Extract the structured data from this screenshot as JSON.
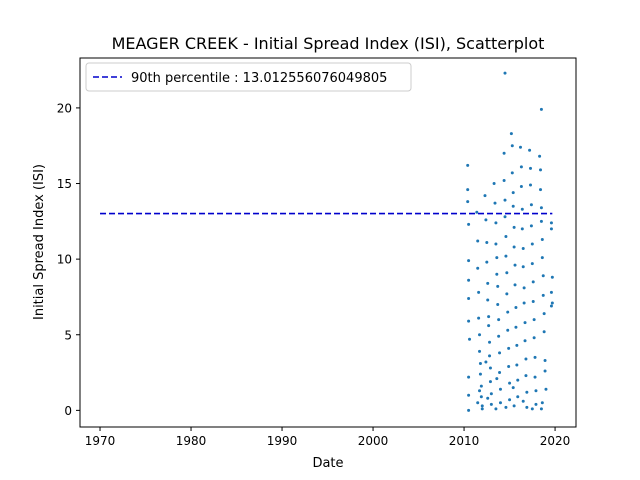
{
  "chart_data": {
    "type": "scatter",
    "title": "MEAGER CREEK - Initial Spread Index (ISI), Scatterplot",
    "xlabel": "Date",
    "ylabel": "Initial Spread Index (ISI)",
    "xlim": [
      1967.8,
      2022.3
    ],
    "ylim": [
      -1.1,
      23.3
    ],
    "x_ticks": [
      1970,
      1980,
      1990,
      2000,
      2010,
      2020
    ],
    "y_ticks": [
      0,
      5,
      10,
      15,
      20
    ],
    "grid": false,
    "legend_position": "top-left",
    "percentile_line": {
      "label": "90th percentile : 13.012556076049805",
      "value": 13.012556076049805,
      "x_range": [
        1970,
        2019.7
      ],
      "color": "#0000cc",
      "style": "dashed"
    },
    "series": [
      {
        "color": "#1f77b4",
        "points": [
          [
            2010.4,
            16.2
          ],
          [
            2010.4,
            14.6
          ],
          [
            2010.4,
            13.8
          ],
          [
            2010.5,
            12.3
          ],
          [
            2010.5,
            9.9
          ],
          [
            2010.5,
            8.6
          ],
          [
            2010.5,
            7.4
          ],
          [
            2010.5,
            5.9
          ],
          [
            2010.6,
            4.7
          ],
          [
            2010.5,
            2.2
          ],
          [
            2010.5,
            1.0
          ],
          [
            2010.5,
            0.0
          ],
          [
            2011.4,
            13.1
          ],
          [
            2011.5,
            11.2
          ],
          [
            2011.5,
            9.4
          ],
          [
            2011.6,
            7.8
          ],
          [
            2011.6,
            6.1
          ],
          [
            2011.7,
            5.0
          ],
          [
            2011.7,
            3.9
          ],
          [
            2011.8,
            3.1
          ],
          [
            2011.8,
            2.4
          ],
          [
            2011.9,
            1.6
          ],
          [
            2011.9,
            0.9
          ],
          [
            2012.0,
            0.3
          ],
          [
            2012.0,
            0.1
          ],
          [
            2011.7,
            1.3
          ],
          [
            2011.5,
            0.5
          ],
          [
            2012.3,
            14.2
          ],
          [
            2012.4,
            12.6
          ],
          [
            2012.5,
            11.1
          ],
          [
            2012.5,
            9.8
          ],
          [
            2012.6,
            8.4
          ],
          [
            2012.6,
            7.3
          ],
          [
            2012.7,
            6.2
          ],
          [
            2012.7,
            5.6
          ],
          [
            2012.8,
            4.5
          ],
          [
            2012.8,
            3.6
          ],
          [
            2012.9,
            2.8
          ],
          [
            2012.9,
            1.9
          ],
          [
            2013.0,
            1.1
          ],
          [
            2013.0,
            0.4
          ],
          [
            2012.4,
            3.2
          ],
          [
            2012.6,
            0.8
          ],
          [
            2013.3,
            15.0
          ],
          [
            2013.4,
            13.7
          ],
          [
            2013.5,
            12.4
          ],
          [
            2013.5,
            11.0
          ],
          [
            2013.6,
            10.1
          ],
          [
            2013.6,
            9.0
          ],
          [
            2013.7,
            8.2
          ],
          [
            2013.7,
            7.0
          ],
          [
            2013.8,
            6.0
          ],
          [
            2013.8,
            4.9
          ],
          [
            2013.9,
            3.8
          ],
          [
            2013.9,
            2.5
          ],
          [
            2014.0,
            1.4
          ],
          [
            2014.0,
            0.5
          ],
          [
            2013.5,
            0.1
          ],
          [
            2013.6,
            2.1
          ],
          [
            2014.5,
            22.3
          ],
          [
            2014.4,
            17.0
          ],
          [
            2014.4,
            15.2
          ],
          [
            2014.5,
            13.9
          ],
          [
            2014.5,
            12.8
          ],
          [
            2014.6,
            11.5
          ],
          [
            2014.6,
            10.2
          ],
          [
            2014.7,
            9.1
          ],
          [
            2014.7,
            7.7
          ],
          [
            2014.8,
            6.5
          ],
          [
            2014.8,
            5.3
          ],
          [
            2014.9,
            4.1
          ],
          [
            2014.9,
            2.9
          ],
          [
            2015.0,
            1.8
          ],
          [
            2015.0,
            0.7
          ],
          [
            2014.6,
            0.2
          ],
          [
            2015.2,
            18.3
          ],
          [
            2015.3,
            17.5
          ],
          [
            2015.3,
            15.7
          ],
          [
            2015.4,
            14.4
          ],
          [
            2015.4,
            13.5
          ],
          [
            2015.5,
            12.1
          ],
          [
            2015.5,
            10.8
          ],
          [
            2015.6,
            9.6
          ],
          [
            2015.6,
            8.3
          ],
          [
            2015.7,
            6.8
          ],
          [
            2015.7,
            5.5
          ],
          [
            2015.8,
            4.3
          ],
          [
            2015.8,
            3.0
          ],
          [
            2015.9,
            2.0
          ],
          [
            2015.9,
            0.9
          ],
          [
            2015.5,
            0.3
          ],
          [
            2015.4,
            1.5
          ],
          [
            2016.2,
            17.4
          ],
          [
            2016.3,
            16.1
          ],
          [
            2016.3,
            14.8
          ],
          [
            2016.4,
            13.3
          ],
          [
            2016.4,
            12.0
          ],
          [
            2016.5,
            10.7
          ],
          [
            2016.5,
            9.5
          ],
          [
            2016.6,
            8.1
          ],
          [
            2016.6,
            7.1
          ],
          [
            2016.7,
            5.8
          ],
          [
            2016.7,
            4.6
          ],
          [
            2016.8,
            3.4
          ],
          [
            2016.8,
            2.3
          ],
          [
            2016.9,
            1.2
          ],
          [
            2016.9,
            0.2
          ],
          [
            2016.5,
            0.6
          ],
          [
            2017.2,
            17.2
          ],
          [
            2017.3,
            16.0
          ],
          [
            2017.3,
            14.9
          ],
          [
            2017.4,
            13.6
          ],
          [
            2017.4,
            12.2
          ],
          [
            2017.5,
            11.0
          ],
          [
            2017.5,
            9.7
          ],
          [
            2017.6,
            8.5
          ],
          [
            2017.6,
            7.2
          ],
          [
            2017.7,
            6.0
          ],
          [
            2017.7,
            4.8
          ],
          [
            2017.8,
            3.5
          ],
          [
            2017.8,
            2.2
          ],
          [
            2017.9,
            1.3
          ],
          [
            2017.9,
            0.4
          ],
          [
            2017.5,
            0.1
          ],
          [
            2018.5,
            19.9
          ],
          [
            2018.3,
            16.8
          ],
          [
            2018.4,
            15.9
          ],
          [
            2018.4,
            14.6
          ],
          [
            2018.5,
            13.4
          ],
          [
            2018.5,
            12.5
          ],
          [
            2018.6,
            11.3
          ],
          [
            2018.6,
            10.1
          ],
          [
            2018.7,
            8.9
          ],
          [
            2018.7,
            7.6
          ],
          [
            2018.8,
            6.4
          ],
          [
            2018.8,
            5.2
          ],
          [
            2018.9,
            3.3
          ],
          [
            2018.9,
            2.6
          ],
          [
            2019.0,
            1.4
          ],
          [
            2018.6,
            0.5
          ],
          [
            2018.5,
            0.1
          ],
          [
            2019.6,
            12.4
          ],
          [
            2019.6,
            12.0
          ],
          [
            2019.7,
            8.8
          ],
          [
            2019.6,
            7.8
          ],
          [
            2019.7,
            7.1
          ],
          [
            2019.6,
            6.9
          ]
        ]
      }
    ]
  }
}
